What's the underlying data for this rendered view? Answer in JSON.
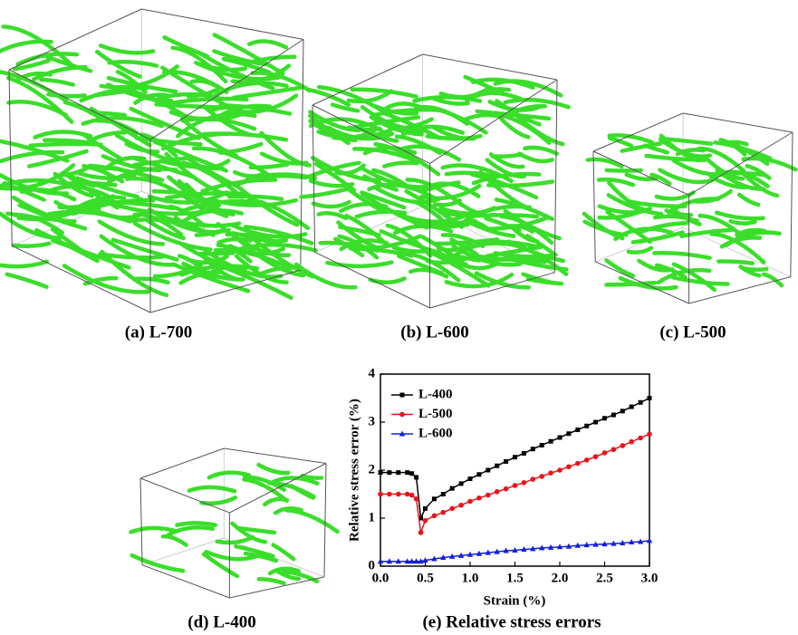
{
  "captions": [
    "(a) L-700",
    "(b) L-600",
    "(c) L-500",
    "(d) L-400",
    "(e) Relative stress errors"
  ],
  "chart_data": {
    "type": "line",
    "x_label": "Strain (%)",
    "y_label": "Relative stress error (%)",
    "x": [
      0,
      0.1,
      0.2,
      0.3,
      0.35,
      0.4,
      0.45,
      0.5,
      0.6,
      0.7,
      0.8,
      0.9,
      1.0,
      1.1,
      1.2,
      1.3,
      1.4,
      1.5,
      1.6,
      1.7,
      1.8,
      1.9,
      2.0,
      2.1,
      2.2,
      2.3,
      2.4,
      2.5,
      2.6,
      2.7,
      2.8,
      2.9,
      3.0
    ],
    "series": [
      {
        "name": "L-400",
        "color": "#000000",
        "marker": "square",
        "values": [
          1.95,
          1.95,
          1.95,
          1.95,
          1.93,
          1.85,
          1.0,
          1.2,
          1.4,
          1.5,
          1.62,
          1.72,
          1.82,
          1.91,
          2.0,
          2.09,
          2.18,
          2.27,
          2.35,
          2.44,
          2.52,
          2.6,
          2.68,
          2.76,
          2.84,
          2.92,
          3.0,
          3.08,
          3.15,
          3.23,
          3.32,
          3.41,
          3.5
        ]
      },
      {
        "name": "L-500",
        "color": "#e8141b",
        "marker": "circle",
        "values": [
          1.5,
          1.5,
          1.5,
          1.5,
          1.48,
          1.4,
          0.7,
          0.95,
          1.05,
          1.12,
          1.2,
          1.27,
          1.35,
          1.42,
          1.48,
          1.55,
          1.61,
          1.68,
          1.74,
          1.81,
          1.87,
          1.94,
          2.0,
          2.07,
          2.14,
          2.21,
          2.28,
          2.36,
          2.43,
          2.51,
          2.59,
          2.67,
          2.75
        ]
      },
      {
        "name": "L-600",
        "color": "#1420d8",
        "marker": "triangle",
        "values": [
          0.1,
          0.1,
          0.1,
          0.1,
          0.1,
          0.1,
          0.1,
          0.12,
          0.15,
          0.18,
          0.2,
          0.22,
          0.24,
          0.26,
          0.28,
          0.3,
          0.32,
          0.33,
          0.35,
          0.36,
          0.38,
          0.39,
          0.4,
          0.41,
          0.43,
          0.44,
          0.45,
          0.46,
          0.47,
          0.48,
          0.5,
          0.51,
          0.53
        ]
      }
    ],
    "xlim": [
      0,
      3
    ],
    "xticks": [
      {
        "value": 0,
        "label": "0.0"
      },
      0.5,
      {
        "value": 1,
        "label": "1.0"
      },
      1.5,
      {
        "value": 2,
        "label": "2.0"
      },
      2.5,
      {
        "value": 3,
        "label": "3.0"
      }
    ],
    "ylim": [
      0,
      4
    ],
    "yticks": [
      0,
      1,
      2,
      3,
      4
    ],
    "legend": "upper left"
  }
}
